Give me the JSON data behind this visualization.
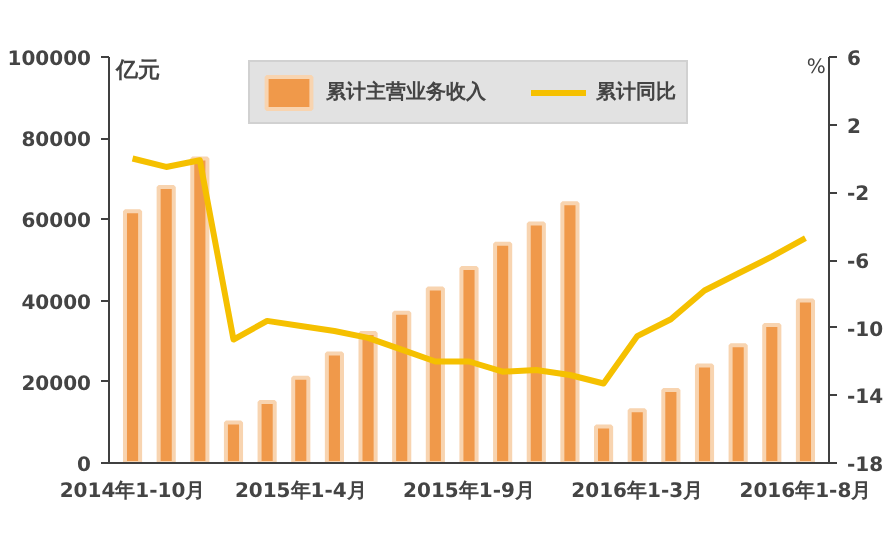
{
  "chart_data": {
    "type": "bar",
    "ylabel": "亿元",
    "y2label": "%",
    "categories": [
      "2014年1-10月",
      null,
      null,
      null,
      null,
      "2015年1-4月",
      null,
      null,
      null,
      null,
      "2015年1-9月",
      null,
      null,
      null,
      null,
      "2016年1-3月",
      null,
      null,
      null,
      null,
      "2016年1-8月"
    ],
    "series": [
      {
        "name": "累计主营业务收入",
        "color": "#f0994a",
        "values": [
          62000,
          68000,
          75000,
          10000,
          15000,
          21000,
          27000,
          32000,
          37000,
          43000,
          48000,
          54000,
          59000,
          64000,
          9000,
          13000,
          18000,
          24000,
          29000,
          34000,
          40000
        ]
      },
      {
        "name": "累计同比",
        "type": "line",
        "axis": "y2",
        "color": "#f5c000",
        "values": [
          0.0,
          -0.5,
          -0.1,
          -10.7,
          -9.6,
          -9.9,
          -10.2,
          -10.6,
          -11.3,
          -12.0,
          -12.0,
          -12.6,
          -12.5,
          -12.8,
          -13.3,
          -10.5,
          -9.5,
          -7.8,
          -6.8,
          -5.8,
          -4.7
        ]
      }
    ],
    "ylim": [
      0,
      100000
    ],
    "yticks": [
      0,
      20000,
      40000,
      60000,
      80000,
      100000
    ],
    "y2lim": [
      -18,
      6
    ],
    "y2ticks": [
      -18,
      -14,
      -10,
      -6,
      -2,
      2,
      6
    ],
    "grid": false,
    "legend": "top",
    "marker": "none",
    "line_style": "solid"
  }
}
